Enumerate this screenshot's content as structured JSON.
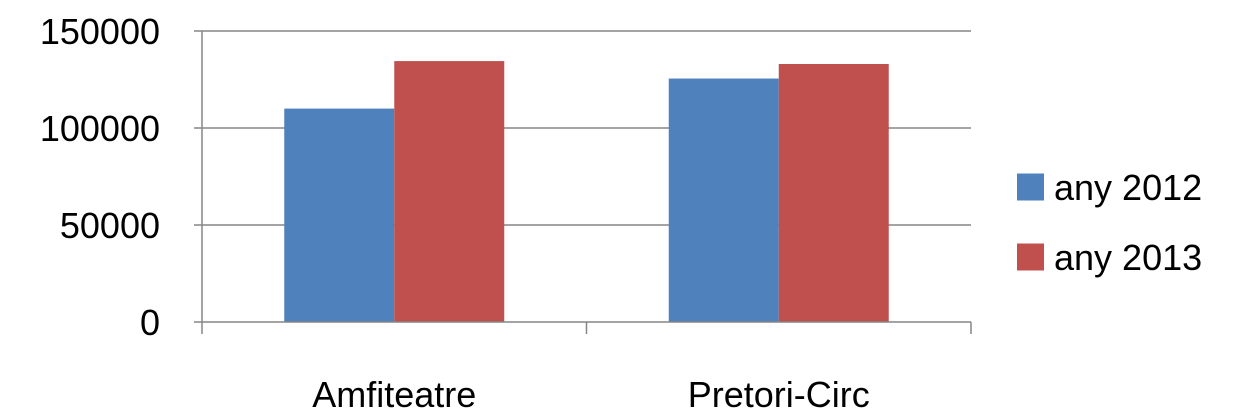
{
  "chart_data": {
    "type": "bar",
    "title": "",
    "xlabel": "",
    "ylabel": "",
    "categories": [
      "Amfiteatre",
      "Pretori-Circ"
    ],
    "series": [
      {
        "name": "any 2012",
        "color": "#4F81BD",
        "values": [
          110000,
          125500
        ]
      },
      {
        "name": "any 2013",
        "color": "#C0504D",
        "values": [
          134500,
          133000
        ]
      }
    ],
    "ylim": [
      0,
      150000
    ],
    "yticks": [
      0,
      50000,
      100000,
      150000
    ],
    "ytick_labels": [
      "0",
      "50000",
      "100000",
      "150000"
    ],
    "grid": true,
    "legend_position": "right"
  }
}
